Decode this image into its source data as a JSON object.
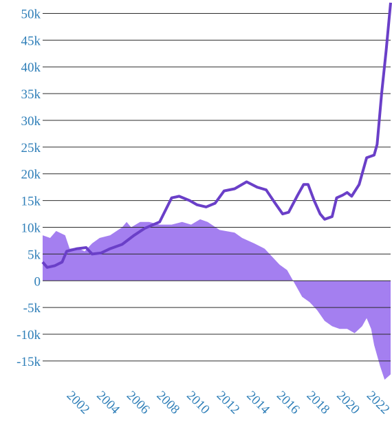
{
  "chart_data": {
    "type": "line",
    "xlim": [
      1999.7,
      2022.9
    ],
    "xticks": [
      2002,
      2004,
      2006,
      2008,
      2010,
      2012,
      2014,
      2016,
      2018,
      2020,
      2022
    ],
    "ylim": [
      -19000,
      52500
    ],
    "yticks": [
      {
        "value": -15000,
        "label": "-15k"
      },
      {
        "value": -10000,
        "label": "-10k"
      },
      {
        "value": -5000,
        "label": "-5k"
      },
      0,
      {
        "value": 5000,
        "label": "5k"
      },
      {
        "value": 10000,
        "label": "10k"
      },
      {
        "value": 15000,
        "label": "15k"
      },
      {
        "value": 20000,
        "label": "20k"
      },
      {
        "value": 25000,
        "label": "25k"
      },
      {
        "value": 30000,
        "label": "30k"
      },
      {
        "value": 35000,
        "label": "35k"
      },
      {
        "value": 40000,
        "label": "40k"
      },
      {
        "value": 45000,
        "label": "45k"
      },
      {
        "value": 50000,
        "label": "50k"
      }
    ],
    "grid": true,
    "series": [
      {
        "type": "area",
        "color": "#a47ff0",
        "x": [
          1999.7,
          2000.2,
          2000.6,
          2001.2,
          2001.5,
          2002.0,
          2002.5,
          2003.0,
          2003.5,
          2004.2,
          2005.0,
          2005.3,
          2005.6,
          2006.2,
          2006.8,
          2007.5,
          2008.3,
          2009.0,
          2009.6,
          2010.2,
          2010.7,
          2011.5,
          2012.5,
          2013.0,
          2013.8,
          2014.5,
          2015.0,
          2015.5,
          2016.0,
          2016.5,
          2017.0,
          2017.5,
          2018.0,
          2018.5,
          2019.0,
          2019.5,
          2020.0,
          2020.5,
          2021.0,
          2021.3,
          2021.6,
          2021.8,
          2022.2,
          2022.5,
          2022.9
        ],
        "values": [
          8500,
          8000,
          9300,
          8500,
          6000,
          6200,
          5500,
          7000,
          8000,
          8500,
          10000,
          11000,
          10000,
          11000,
          11000,
          10500,
          10500,
          11000,
          10500,
          11500,
          11000,
          9500,
          9000,
          8000,
          7000,
          6000,
          4500,
          3000,
          2000,
          -500,
          -3000,
          -4000,
          -5500,
          -7500,
          -8500,
          -9000,
          -9000,
          -9800,
          -8500,
          -7000,
          -9000,
          -12000,
          -16000,
          -18500,
          -17500
        ]
      },
      {
        "type": "line",
        "color": "#6a3fc8",
        "x": [
          1999.7,
          2000.0,
          2000.5,
          2001.0,
          2001.3,
          2002.0,
          2002.6,
          2003.0,
          2003.6,
          2004.2,
          2005.0,
          2005.8,
          2006.5,
          2007.5,
          2008.3,
          2008.8,
          2009.5,
          2010.0,
          2010.6,
          2011.2,
          2011.8,
          2012.5,
          2013.3,
          2014.0,
          2014.6,
          2015.2,
          2015.7,
          2016.1,
          2016.7,
          2017.1,
          2017.4,
          2017.8,
          2018.2,
          2018.5,
          2019.0,
          2019.3,
          2019.7,
          2020.0,
          2020.3,
          2020.8,
          2021.3,
          2021.8,
          2022.0,
          2022.3,
          2022.6,
          2022.9
        ],
        "values": [
          3500,
          2500,
          2800,
          3500,
          5500,
          6000,
          6200,
          5000,
          5200,
          6000,
          6800,
          8500,
          9800,
          11000,
          15500,
          15800,
          15000,
          14200,
          13800,
          14500,
          16800,
          17200,
          18500,
          17500,
          17000,
          14500,
          12500,
          12800,
          16000,
          18000,
          18000,
          15000,
          12500,
          11500,
          12000,
          15500,
          16000,
          16500,
          15800,
          18000,
          23000,
          23500,
          25500,
          35000,
          43000,
          52000
        ]
      }
    ]
  }
}
